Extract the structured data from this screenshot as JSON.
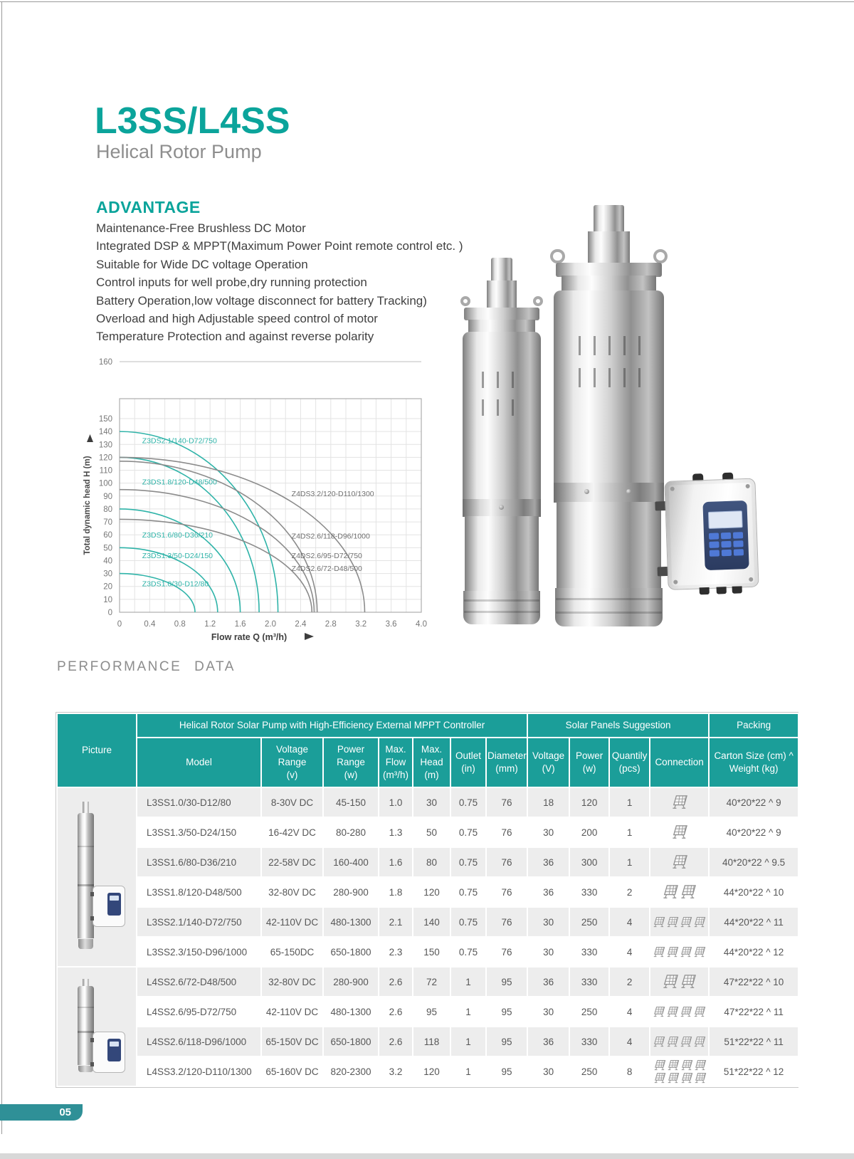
{
  "page": {
    "number": "05"
  },
  "colors": {
    "accent_teal": "#0ba49b",
    "table_header_teal": "#1b9e99",
    "curve_teal": "#2eb3a8",
    "curve_gray": "#8b8b8b",
    "page_tab_teal": "#2f9097",
    "row_alt_gray": "#ededed"
  },
  "header": {
    "title": "L3SS/L4SS",
    "subtitle": "Helical Rotor Pump"
  },
  "advantage": {
    "heading": "ADVANTAGE",
    "items": [
      "Maintenance-Free Brushless DC Motor",
      "Integrated DSP & MPPT(Maximum Power Point remote control etc. )",
      "Suitable for Wide DC voltage Operation",
      "Control inputs for well probe,dry running protection",
      "Battery Operation,low voltage disconnect for battery  Tracking)",
      "Overload and high Adjustable speed control of motor",
      "Temperature Protection and against reverse polarity"
    ]
  },
  "chart_data": {
    "type": "line",
    "title": "",
    "xlabel": "Flow rate Q (m³/h)",
    "ylabel": "Total dynamic head H (m)",
    "xlim": [
      0,
      4.0
    ],
    "ylim": [
      0,
      160
    ],
    "x_tick_step": 0.4,
    "x_grid_minor_step": 0.2,
    "y_tick_step": 10,
    "y_label_max": 150,
    "top_reference_line": 160,
    "grid": true,
    "series": [
      {
        "name": "Z3DS1.0/30-D12/80",
        "color_key": "teal",
        "shutoff_head": 30,
        "max_flow": 1.0,
        "label_x": 0.3,
        "label_y": 20
      },
      {
        "name": "Z3DS1.3/50-D24/150",
        "color_key": "teal",
        "shutoff_head": 50,
        "max_flow": 1.3,
        "label_x": 0.3,
        "label_y": 42
      },
      {
        "name": "Z3DS1.6/80-D36/210",
        "color_key": "teal",
        "shutoff_head": 80,
        "max_flow": 1.6,
        "label_x": 0.3,
        "label_y": 58
      },
      {
        "name": "Z3DS1.8/120-D48/500",
        "color_key": "teal",
        "shutoff_head": 120,
        "max_flow": 1.85,
        "label_x": 0.3,
        "label_y": 99
      },
      {
        "name": "Z3DS2.1/140-D72/750",
        "color_key": "teal",
        "shutoff_head": 140,
        "max_flow": 2.1,
        "label_x": 0.3,
        "label_y": 131
      },
      {
        "name": "Z4DS2.6/72-D48/500",
        "color_key": "gray",
        "shutoff_head": 72,
        "max_flow": 2.55,
        "label_x": 2.28,
        "label_y": 32
      },
      {
        "name": "Z4DS2.6/95-D72/750",
        "color_key": "gray",
        "shutoff_head": 95,
        "max_flow": 2.58,
        "label_x": 2.28,
        "label_y": 42
      },
      {
        "name": "Z4DS2.6/118-D96/1000",
        "color_key": "gray",
        "shutoff_head": 117,
        "max_flow": 2.62,
        "label_x": 2.28,
        "label_y": 57
      },
      {
        "name": "Z4DS3.2/120-D110/1300",
        "color_key": "gray",
        "shutoff_head": 120,
        "max_flow": 3.25,
        "label_x": 2.28,
        "label_y": 90
      }
    ]
  },
  "performance": {
    "heading": "PERFORMANCE  DATA",
    "table": {
      "group_headers": {
        "picture": "Picture",
        "main": "Helical Rotor Solar Pump with High-Efficiency External MPPT Controller",
        "solar": "Solar Panels Suggestion",
        "packing": "Packing"
      },
      "sub_headers": {
        "model": "Model",
        "voltage_range": "Voltage\nRange\n(v)",
        "power_range": "Power\nRange\n(w)",
        "max_flow": "Max.\nFlow\n(m³/h)",
        "max_head": "Max.\nHead\n(m)",
        "outlet": "Outlet\n(in)",
        "diameter": "Diameter\n(mm)",
        "sp_voltage": "Voltage\n(V)",
        "sp_power": "Power\n(w)",
        "sp_qty": "Quantily\n(pcs)",
        "connection": "Connection",
        "carton": "Carton Size (cm) ^\nWeight (kg)"
      },
      "rows": [
        {
          "model": "L3SS1.0/30-D12/80",
          "voltage_range": "8-30V DC",
          "power_range": "45-150",
          "max_flow": "1.0",
          "max_head": "30",
          "outlet": "0.75",
          "diameter": "76",
          "sp_voltage": "18",
          "sp_power": "120",
          "sp_qty": "1",
          "panels": 1,
          "carton": "40*20*22 ^ 9"
        },
        {
          "model": "L3SS1.3/50-D24/150",
          "voltage_range": "16-42V DC",
          "power_range": "80-280",
          "max_flow": "1.3",
          "max_head": "50",
          "outlet": "0.75",
          "diameter": "76",
          "sp_voltage": "30",
          "sp_power": "200",
          "sp_qty": "1",
          "panels": 1,
          "carton": "40*20*22 ^ 9"
        },
        {
          "model": "L3SS1.6/80-D36/210",
          "voltage_range": "22-58V DC",
          "power_range": "160-400",
          "max_flow": "1.6",
          "max_head": "80",
          "outlet": "0.75",
          "diameter": "76",
          "sp_voltage": "36",
          "sp_power": "300",
          "sp_qty": "1",
          "panels": 1,
          "carton": "40*20*22 ^ 9.5"
        },
        {
          "model": "L3SS1.8/120-D48/500",
          "voltage_range": "32-80V DC",
          "power_range": "280-900",
          "max_flow": "1.8",
          "max_head": "120",
          "outlet": "0.75",
          "diameter": "76",
          "sp_voltage": "36",
          "sp_power": "330",
          "sp_qty": "2",
          "panels": 2,
          "carton": "44*20*22 ^ 10"
        },
        {
          "model": "L3SS2.1/140-D72/750",
          "voltage_range": "42-110V DC",
          "power_range": "480-1300",
          "max_flow": "2.1",
          "max_head": "140",
          "outlet": "0.75",
          "diameter": "76",
          "sp_voltage": "30",
          "sp_power": "250",
          "sp_qty": "4",
          "panels": 4,
          "carton": "44*20*22 ^ 11"
        },
        {
          "model": "L3SS2.3/150-D96/1000",
          "voltage_range": "65-150DC",
          "power_range": "650-1800",
          "max_flow": "2.3",
          "max_head": "150",
          "outlet": "0.75",
          "diameter": "76",
          "sp_voltage": "30",
          "sp_power": "330",
          "sp_qty": "4",
          "panels": 4,
          "carton": "44*20*22 ^ 12"
        },
        {
          "model": "L4SS2.6/72-D48/500",
          "voltage_range": "32-80V DC",
          "power_range": "280-900",
          "max_flow": "2.6",
          "max_head": "72",
          "outlet": "1",
          "diameter": "95",
          "sp_voltage": "36",
          "sp_power": "330",
          "sp_qty": "2",
          "panels": 2,
          "carton": "47*22*22 ^ 10"
        },
        {
          "model": "L4SS2.6/95-D72/750",
          "voltage_range": "42-110V DC",
          "power_range": "480-1300",
          "max_flow": "2.6",
          "max_head": "95",
          "outlet": "1",
          "diameter": "95",
          "sp_voltage": "30",
          "sp_power": "250",
          "sp_qty": "4",
          "panels": 4,
          "carton": "47*22*22 ^ 11"
        },
        {
          "model": "L4SS2.6/118-D96/1000",
          "voltage_range": "65-150V DC",
          "power_range": "650-1800",
          "max_flow": "2.6",
          "max_head": "118",
          "outlet": "1",
          "diameter": "95",
          "sp_voltage": "36",
          "sp_power": "330",
          "sp_qty": "4",
          "panels": 4,
          "carton": "51*22*22 ^ 11"
        },
        {
          "model": "L4SS3.2/120-D110/1300",
          "voltage_range": "65-160V DC",
          "power_range": "820-2300",
          "max_flow": "3.2",
          "max_head": "120",
          "outlet": "1",
          "diameter": "95",
          "sp_voltage": "30",
          "sp_power": "250",
          "sp_qty": "8",
          "panels": 8,
          "carton": "51*22*22 ^ 12"
        }
      ],
      "picture_groups": [
        {
          "start": 0,
          "span": 6
        },
        {
          "start": 6,
          "span": 4
        }
      ]
    }
  }
}
